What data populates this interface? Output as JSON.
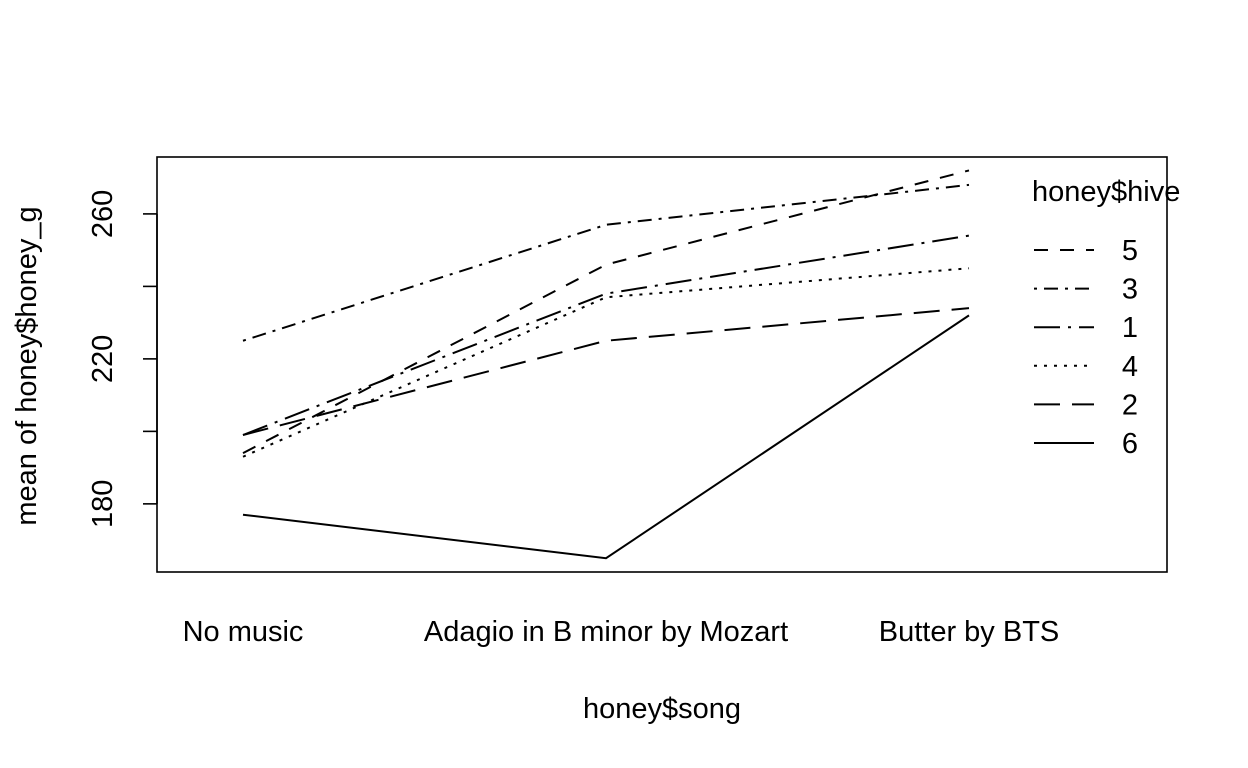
{
  "chart_data": {
    "type": "line",
    "title": "",
    "xlabel": "honey$song",
    "ylabel": "mean of  honey$honey_g",
    "categories": [
      "No music",
      "Adagio in B minor by Mozart",
      "Butter by BTS"
    ],
    "y_ticks": [
      180,
      220,
      260
    ],
    "ylim": [
      161.2,
      275.7
    ],
    "grid": false,
    "legend": {
      "title": "honey$hive",
      "placement": "right"
    },
    "series": [
      {
        "name": "5",
        "values": [
          194,
          246,
          272
        ],
        "dash": "dashed"
      },
      {
        "name": "3",
        "values": [
          225,
          257,
          268
        ],
        "dash": "dotdash"
      },
      {
        "name": "1",
        "values": [
          199,
          238,
          254
        ],
        "dash": "longdash-dot"
      },
      {
        "name": "4",
        "values": [
          193,
          237,
          245
        ],
        "dash": "dotted"
      },
      {
        "name": "2",
        "values": [
          199,
          225,
          234
        ],
        "dash": "longdash"
      },
      {
        "name": "6",
        "values": [
          177,
          165,
          232
        ],
        "dash": "solid"
      }
    ]
  }
}
